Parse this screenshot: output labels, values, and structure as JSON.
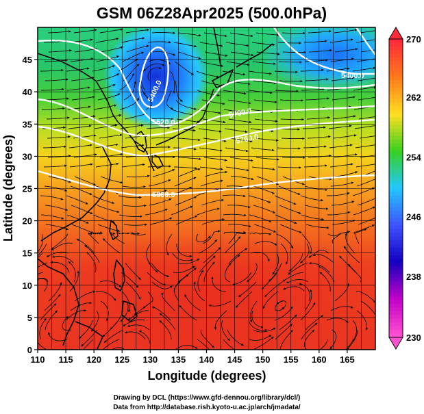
{
  "title": "GSM 06Z28Apr2025 (500.0hPa)",
  "x_axis": {
    "label": "Longitude (degrees)",
    "ticks": [
      "110",
      "115",
      "120",
      "125",
      "130",
      "135",
      "140",
      "145",
      "150",
      "155",
      "160",
      "165"
    ]
  },
  "y_axis": {
    "label": "Latitude  (degrees)",
    "ticks": [
      "0",
      "5",
      "10",
      "15",
      "20",
      "25",
      "30",
      "35",
      "40",
      "45"
    ]
  },
  "colorbar": {
    "labels": [
      "270",
      "262",
      "254",
      "246",
      "238",
      "230"
    ],
    "colors": [
      "#ff2a3a",
      "#ff7a1a",
      "#ffe020",
      "#37d020",
      "#22c8ff",
      "#3e53ff",
      "#1500c0",
      "#c000c8",
      "#ff50d0"
    ]
  },
  "contour_labels": [
    "5400.0",
    "5400.0",
    "5520.0",
    "5700.0",
    "5760.0",
    "5880.0"
  ],
  "credits": [
    "Drawing by DCL (https://www.gfd-dennou.org/library/dcl/)",
    "Data from http://database.rish.kyoto-u.ac.jp/arch/jmadata/"
  ]
}
